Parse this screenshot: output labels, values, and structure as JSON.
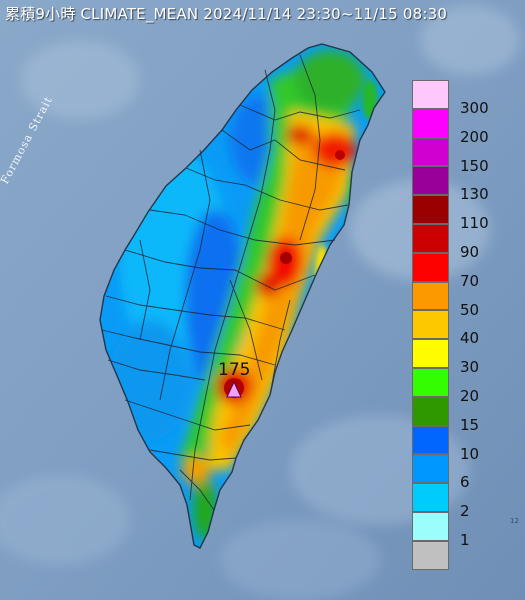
{
  "title": "累積9小時 CLIMATE_MEAN 2024/11/14 23:30~11/15 08:30",
  "map": {
    "strait_label": "Formosa Strait",
    "peak_value": "175",
    "edge_mark": "12",
    "colors": {
      "sea": "#7f9fc2",
      "sea_light": "#9ab7d6",
      "boundary": "#1c2433"
    }
  },
  "legend": {
    "items": [
      {
        "label": "300",
        "color": "#fdc9fd"
      },
      {
        "label": "200",
        "color": "#fd00fd"
      },
      {
        "label": "150",
        "color": "#cf00d0"
      },
      {
        "label": "130",
        "color": "#990099"
      },
      {
        "label": "110",
        "color": "#9a0000"
      },
      {
        "label": "90",
        "color": "#cc0000"
      },
      {
        "label": "70",
        "color": "#fd0000"
      },
      {
        "label": "50",
        "color": "#fd9900"
      },
      {
        "label": "40",
        "color": "#fdc800"
      },
      {
        "label": "30",
        "color": "#fffd00"
      },
      {
        "label": "20",
        "color": "#33fd00"
      },
      {
        "label": "15",
        "color": "#2f9800"
      },
      {
        "label": "10",
        "color": "#0066fd"
      },
      {
        "label": "6",
        "color": "#0098fd"
      },
      {
        "label": "2",
        "color": "#00cbfd"
      },
      {
        "label": "1",
        "color": "#9cfdfd"
      },
      {
        "label": "",
        "color": "#c0c0c0"
      }
    ]
  }
}
